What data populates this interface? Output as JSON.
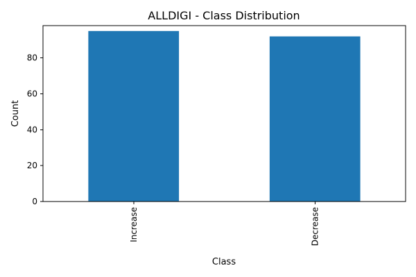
{
  "chart_data": {
    "type": "bar",
    "title": "ALLDIGI - Class Distribution",
    "xlabel": "Class",
    "ylabel": "Count",
    "categories": [
      "Increase",
      "Decrease"
    ],
    "values": [
      95,
      92
    ],
    "ylim": [
      0,
      98
    ],
    "yticks": [
      0,
      20,
      40,
      60,
      80
    ],
    "bar_color": "#1f77b4",
    "grid": false,
    "legend": "none"
  }
}
